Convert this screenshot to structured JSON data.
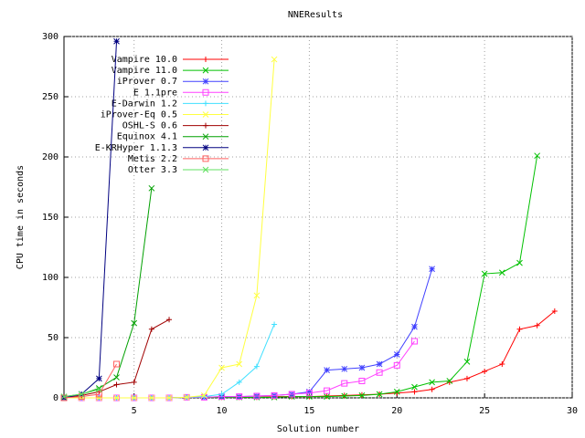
{
  "chart_data": {
    "type": "line",
    "title": "NNEResults",
    "x_label": "Solution number",
    "y_label": "CPU time in seconds",
    "xlim": [
      1,
      30
    ],
    "ylim": [
      0,
      300
    ],
    "xticks": [
      5,
      10,
      15,
      20,
      25,
      30
    ],
    "yticks": [
      0,
      50,
      100,
      150,
      200,
      250,
      300
    ],
    "grid": true,
    "legend": "top-left",
    "series": [
      {
        "name": "Vampire 10.0",
        "color": "#ff0000",
        "marker": "plus",
        "x": [
          1,
          2,
          3,
          4,
          5,
          6,
          7,
          8,
          9,
          10,
          11,
          12,
          13,
          14,
          15,
          16,
          17,
          18,
          19,
          20,
          21,
          22,
          23,
          24,
          25,
          26,
          27,
          28,
          29
        ],
        "values": [
          0,
          0,
          0,
          0,
          0,
          0,
          0,
          0.5,
          0.5,
          0.5,
          0.5,
          0.5,
          1,
          1,
          1,
          1.5,
          2,
          2.5,
          3,
          4,
          5,
          7,
          13,
          16,
          22,
          28,
          57,
          60,
          72
        ]
      },
      {
        "name": "Vampire 11.0",
        "color": "#00c000",
        "marker": "cross",
        "x": [
          1,
          2,
          3,
          4,
          5,
          6,
          7,
          8,
          9,
          10,
          11,
          12,
          13,
          14,
          15,
          16,
          17,
          18,
          19,
          20,
          21,
          22,
          23,
          24,
          25,
          26,
          27,
          28
        ],
        "values": [
          0,
          0,
          0,
          0,
          0,
          0,
          0,
          0.5,
          0.5,
          0.5,
          0.5,
          0.5,
          0.5,
          1,
          1,
          1,
          1.5,
          2,
          3,
          5,
          9,
          13,
          14,
          30,
          103,
          104,
          112,
          201
        ]
      },
      {
        "name": "iProver 0.7",
        "color": "#4040ff",
        "marker": "star",
        "x": [
          1,
          2,
          3,
          4,
          5,
          6,
          7,
          8,
          9,
          10,
          11,
          12,
          13,
          14,
          15,
          16,
          17,
          18,
          19,
          20,
          21,
          22
        ],
        "values": [
          0,
          0,
          0,
          0,
          0,
          0,
          0,
          0.5,
          0.5,
          1,
          1,
          1.5,
          2,
          3,
          5,
          23,
          24,
          25,
          28,
          36,
          59,
          107
        ]
      },
      {
        "name": "E 1.1pre",
        "color": "#ff40ff",
        "marker": "square",
        "x": [
          1,
          2,
          3,
          4,
          5,
          6,
          7,
          8,
          9,
          10,
          11,
          12,
          13,
          14,
          15,
          16,
          17,
          18,
          19,
          20,
          21
        ],
        "values": [
          0,
          0,
          0,
          0,
          0,
          0,
          0,
          0.5,
          0.5,
          1,
          1,
          1.5,
          2,
          3,
          4,
          6,
          12,
          14,
          21,
          27,
          47
        ]
      },
      {
        "name": "E-Darwin 1.2",
        "color": "#40e0ff",
        "marker": "plus",
        "x": [
          1,
          2,
          3,
          4,
          5,
          6,
          7,
          8,
          9,
          10,
          11,
          12,
          13
        ],
        "values": [
          0,
          0,
          0,
          0,
          0,
          0,
          0,
          0.5,
          1,
          3,
          13,
          26,
          61
        ]
      },
      {
        "name": "iProver-Eq 0.5",
        "color": "#ffff40",
        "marker": "cross",
        "x": [
          1,
          2,
          3,
          4,
          5,
          6,
          7,
          8,
          9,
          10,
          11,
          12,
          13
        ],
        "values": [
          0,
          0,
          0,
          0,
          0,
          0,
          0,
          0.5,
          2,
          25,
          28,
          85,
          281
        ]
      },
      {
        "name": "OSHL-S 0.6",
        "color": "#a00000",
        "marker": "plus",
        "x": [
          1,
          2,
          3,
          4,
          5,
          6,
          7
        ],
        "values": [
          0,
          2,
          5,
          11,
          13,
          57,
          65
        ]
      },
      {
        "name": "Equinox 4.1",
        "color": "#00a000",
        "marker": "cross",
        "x": [
          1,
          2,
          3,
          4,
          5,
          6
        ],
        "values": [
          1,
          3,
          8,
          17,
          62,
          174
        ]
      },
      {
        "name": "E-KRHyper 1.1.3",
        "color": "#000080",
        "marker": "star",
        "x": [
          1,
          2,
          3,
          4
        ],
        "values": [
          0,
          3,
          16,
          296
        ]
      },
      {
        "name": "Metis 2.2",
        "color": "#ff6060",
        "marker": "square",
        "x": [
          1,
          2,
          3,
          4
        ],
        "values": [
          0,
          1,
          3,
          28
        ]
      },
      {
        "name": "Otter 3.3",
        "color": "#60e060",
        "marker": "cross",
        "x": [
          1,
          2,
          3
        ],
        "values": [
          1,
          3,
          7
        ]
      }
    ]
  }
}
